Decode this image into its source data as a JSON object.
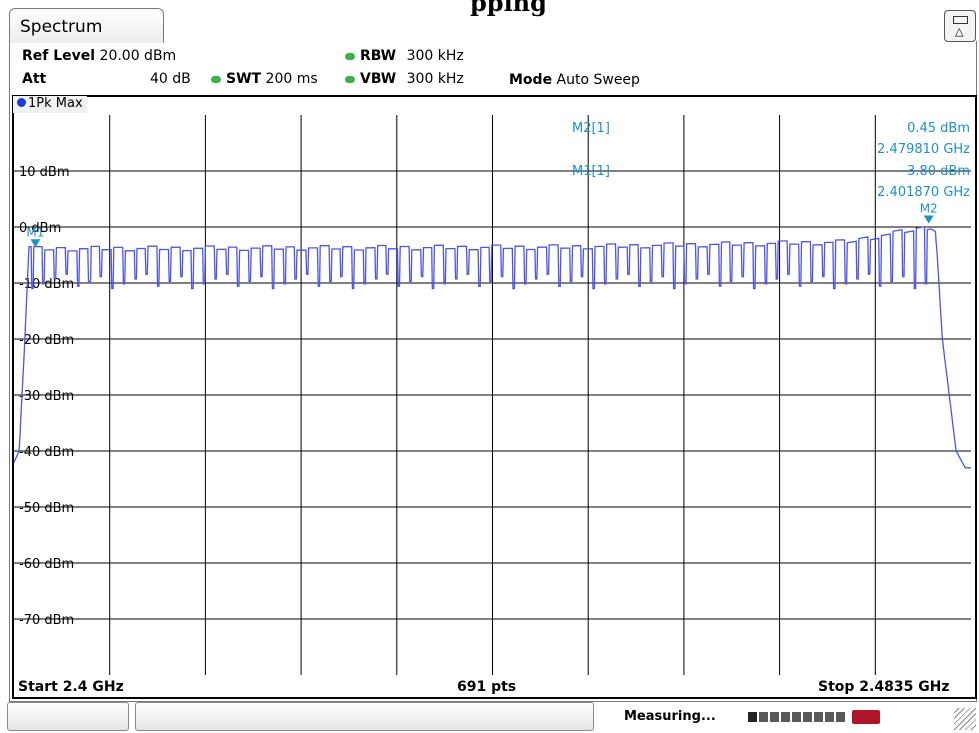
{
  "window": {
    "top_caption": "pping",
    "tab_label": "Spectrum"
  },
  "header": {
    "ref_level_label": "Ref Level",
    "ref_level_value": "20.00 dBm",
    "att_label": "Att",
    "att_value": "40 dB",
    "swt_label": "SWT",
    "swt_value": "200 ms",
    "rbw_label": "RBW",
    "rbw_value": "300 kHz",
    "vbw_label": "VBW",
    "vbw_value": "300 kHz",
    "mode_label": "Mode",
    "mode_value": "Auto Sweep"
  },
  "trace": {
    "label": "1Pk Max",
    "color": "#4b55e6"
  },
  "markers": {
    "m2_label": "M2[1]",
    "m2_level": "0.45 dBm",
    "m2_freq": "2.479810 GHz",
    "m1_label": "M1[1]",
    "m1_level": "-3.80 dBm",
    "m1_freq": "2.401870 GHz",
    "m1_tag": "M1",
    "m2_tag": "M2",
    "marker_color": "#1e90c8"
  },
  "footer": {
    "start": "Start 2.4 GHz",
    "points": "691 pts",
    "stop": "Stop 2.4835 GHz"
  },
  "status": {
    "measuring": "Measuring..."
  },
  "chart_data": {
    "type": "line",
    "title": "",
    "xlabel": "",
    "ylabel": "",
    "x_unit": "GHz",
    "y_unit": "dBm",
    "xlim": [
      2.4,
      2.4835
    ],
    "ylim": [
      -80,
      20
    ],
    "grid": true,
    "y_ticks": [
      "10 dBm",
      "0 dBm",
      "-10 dBm",
      "-20 dBm",
      "-30 dBm",
      "-40 dBm",
      "-50 dBm",
      "-60 dBm",
      "-70 dBm"
    ],
    "y_tick_values": [
      10,
      0,
      -10,
      -20,
      -30,
      -40,
      -50,
      -60,
      -70
    ],
    "reference_lines": [
      {
        "label": "10 dBm",
        "y": 10,
        "x_end": 2.4445
      },
      {
        "label": "0 dBm",
        "y": 0,
        "x_end": 2.4015
      }
    ],
    "series": [
      {
        "name": "1Pk Max",
        "envelope": [
          [
            2.4,
            -42
          ],
          [
            2.40045,
            -40
          ],
          [
            2.40095,
            -20
          ],
          [
            2.4013,
            -3.5
          ],
          [
            2.4475,
            -3.2
          ],
          [
            2.4725,
            -2.3
          ],
          [
            2.48,
            0.45
          ],
          [
            2.4804,
            0
          ],
          [
            2.481,
            -20
          ],
          [
            2.4822,
            -40
          ],
          [
            2.483,
            -43
          ],
          [
            2.4835,
            -43
          ]
        ],
        "channel_count": 79,
        "channel_start_ghz": 2.402,
        "channel_spacing_mhz": 1,
        "channel_top_dbm_range": [
          -3.8,
          0.4
        ],
        "channel_dip_dbm_range": [
          -11,
          -8
        ]
      }
    ],
    "markers": [
      {
        "name": "M1",
        "x": 2.40187,
        "y": -3.8
      },
      {
        "name": "M2",
        "x": 2.47981,
        "y": 0.45
      }
    ]
  }
}
